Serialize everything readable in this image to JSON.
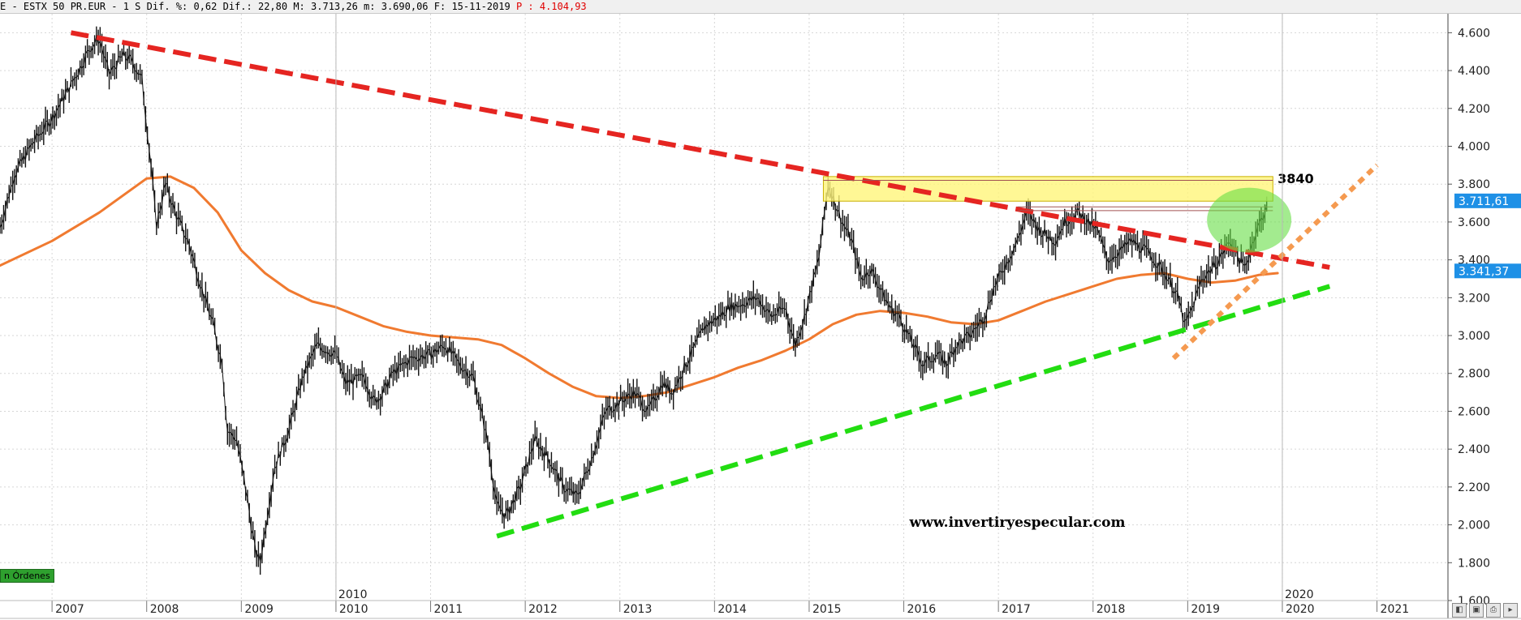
{
  "header": {
    "symbol": "E - ESTX 50 PR.EUR -",
    "period": "1 S",
    "pct_change_label": "Dif. %:",
    "pct_change": "0,62",
    "change_label": "Dif.:",
    "change": "22,80",
    "high_label": "M:",
    "high": "3.713,26",
    "low_label": "m:",
    "low": "3.690,06",
    "date_label": "F:",
    "date": "15-11-2019",
    "max_label": "P :",
    "max": "4.104,93"
  },
  "colors": {
    "price": "#111111",
    "ma": "#f07a30",
    "resistance": "#e52521",
    "support": "#22dd11",
    "uptrend": "#f59a50",
    "zone": "#fff57a",
    "circle": "#66dd44",
    "last_tag": "#1e90e6"
  },
  "chart_data": {
    "type": "line",
    "title": "",
    "xlabel": "",
    "ylabel": "",
    "x_range": [
      2006.45,
      2021.75
    ],
    "ylim": [
      1600,
      4700
    ],
    "y_ticks": [
      1600,
      1800,
      2000,
      2200,
      2400,
      2600,
      2800,
      3000,
      3200,
      3400,
      3600,
      3800,
      4000,
      4200,
      4400,
      4600
    ],
    "y_tick_labels": [
      "1.600",
      "1.800",
      "2.000",
      "2.200",
      "2.400",
      "2.600",
      "2.800",
      "3.000",
      "3.200",
      "3.400",
      "3.600",
      "3.800",
      "4.000",
      "4.200",
      "4.400",
      "4.600"
    ],
    "x_ticks": [
      2007,
      2008,
      2009,
      2010,
      2011,
      2012,
      2013,
      2014,
      2015,
      2016,
      2017,
      2018,
      2019,
      2020,
      2021
    ],
    "x_tick_labels": [
      "2007",
      "2008",
      "2009",
      "2010",
      "2011",
      "2012",
      "2013",
      "2014",
      "2015",
      "2016",
      "2017",
      "2018",
      "2019",
      "2020",
      "2021"
    ],
    "x_year_markers": [
      {
        "x": 2010,
        "label": "2010"
      },
      {
        "x": 2020,
        "label": "2020"
      }
    ],
    "grid": true,
    "series": [
      {
        "kind": "price",
        "x": [
          2006.45,
          2006.6,
          2006.8,
          2007.0,
          2007.15,
          2007.3,
          2007.4,
          2007.5,
          2007.6,
          2007.75,
          2007.85,
          2007.95,
          2008.05,
          2008.1,
          2008.2,
          2008.3,
          2008.45,
          2008.55,
          2008.7,
          2008.8,
          2008.85,
          2008.95,
          2009.05,
          2009.15,
          2009.2,
          2009.35,
          2009.5,
          2009.65,
          2009.8,
          2010.0,
          2010.1,
          2010.3,
          2010.4,
          2010.5,
          2010.6,
          2010.8,
          2011.0,
          2011.15,
          2011.3,
          2011.45,
          2011.6,
          2011.7,
          2011.8,
          2011.95,
          2012.1,
          2012.25,
          2012.4,
          2012.55,
          2012.7,
          2012.85,
          2013.0,
          2013.15,
          2013.3,
          2013.45,
          2013.55,
          2013.7,
          2013.9,
          2014.05,
          2014.15,
          2014.3,
          2014.45,
          2014.6,
          2014.75,
          2014.85,
          2014.95,
          2015.1,
          2015.2,
          2015.35,
          2015.45,
          2015.55,
          2015.65,
          2015.75,
          2015.85,
          2015.95,
          2016.1,
          2016.2,
          2016.35,
          2016.45,
          2016.55,
          2016.7,
          2016.85,
          2016.95,
          2017.1,
          2017.2,
          2017.3,
          2017.45,
          2017.6,
          2017.7,
          2017.85,
          2017.95,
          2018.05,
          2018.15,
          2018.3,
          2018.4,
          2018.55,
          2018.65,
          2018.8,
          2018.9,
          2018.97,
          2019.05,
          2019.15,
          2019.3,
          2019.45,
          2019.6,
          2019.7,
          2019.85
        ],
        "values": [
          3570,
          3850,
          4020,
          4150,
          4280,
          4420,
          4520,
          4570,
          4380,
          4480,
          4450,
          4350,
          3880,
          3580,
          3800,
          3650,
          3480,
          3300,
          3060,
          2850,
          2500,
          2450,
          2180,
          1850,
          1810,
          2300,
          2500,
          2780,
          2950,
          2900,
          2750,
          2780,
          2650,
          2700,
          2800,
          2880,
          2900,
          2950,
          2850,
          2780,
          2450,
          2100,
          2050,
          2200,
          2450,
          2350,
          2200,
          2150,
          2350,
          2600,
          2650,
          2700,
          2600,
          2750,
          2700,
          2850,
          3050,
          3100,
          3150,
          3170,
          3200,
          3100,
          3150,
          2950,
          3100,
          3400,
          3800,
          3600,
          3500,
          3300,
          3350,
          3250,
          3150,
          3100,
          2950,
          2850,
          2900,
          2850,
          2950,
          3000,
          3100,
          3250,
          3400,
          3500,
          3650,
          3550,
          3500,
          3600,
          3650,
          3600,
          3550,
          3400,
          3450,
          3500,
          3450,
          3400,
          3300,
          3200,
          3050,
          3150,
          3300,
          3380,
          3500,
          3350,
          3520,
          3700
        ]
      },
      {
        "kind": "moving-average",
        "x": [
          2006.45,
          2007.0,
          2007.5,
          2008.0,
          2008.25,
          2008.5,
          2008.75,
          2009.0,
          2009.25,
          2009.5,
          2009.75,
          2010.0,
          2010.25,
          2010.5,
          2010.75,
          2011.0,
          2011.25,
          2011.5,
          2011.75,
          2012.0,
          2012.25,
          2012.5,
          2012.75,
          2013.0,
          2013.25,
          2013.5,
          2013.75,
          2014.0,
          2014.25,
          2014.5,
          2014.75,
          2015.0,
          2015.25,
          2015.5,
          2015.75,
          2016.0,
          2016.25,
          2016.5,
          2016.75,
          2017.0,
          2017.25,
          2017.5,
          2017.75,
          2018.0,
          2018.25,
          2018.5,
          2018.75,
          2019.0,
          2019.25,
          2019.5,
          2019.75,
          2019.95
        ],
        "values": [
          3370,
          3500,
          3650,
          3830,
          3840,
          3780,
          3650,
          3450,
          3330,
          3240,
          3180,
          3150,
          3100,
          3050,
          3020,
          3000,
          2990,
          2980,
          2950,
          2880,
          2800,
          2730,
          2680,
          2670,
          2680,
          2700,
          2740,
          2780,
          2830,
          2870,
          2920,
          2980,
          3060,
          3110,
          3130,
          3120,
          3100,
          3070,
          3060,
          3080,
          3130,
          3180,
          3220,
          3260,
          3300,
          3320,
          3330,
          3300,
          3280,
          3290,
          3320,
          3330
        ]
      }
    ],
    "annotations": [
      {
        "kind": "resistance-trendline",
        "x": [
          2007.2,
          2020.5
        ],
        "y": [
          4600,
          3360
        ]
      },
      {
        "kind": "support-trendline",
        "x": [
          2011.7,
          2020.5
        ],
        "y": [
          1940,
          3260
        ]
      },
      {
        "kind": "uptrend-line",
        "x": [
          2018.85,
          2021.0
        ],
        "y": [
          2880,
          3900
        ]
      },
      {
        "kind": "resistance-zone",
        "x": [
          2015.15,
          2019.9
        ],
        "y": [
          3710,
          3840
        ]
      },
      {
        "kind": "level-line",
        "x": [
          2015.15,
          2019.9
        ],
        "y": 3820
      },
      {
        "kind": "level-line",
        "x": [
          2017.2,
          2019.9
        ],
        "y": 3680
      },
      {
        "kind": "level-line",
        "x": [
          2017.2,
          2019.9
        ],
        "y": 3660
      },
      {
        "kind": "highlight-circle",
        "x": 2019.65,
        "y": 3610
      },
      {
        "kind": "text",
        "text": "3840",
        "x": 2019.95,
        "y": 3830
      },
      {
        "kind": "watermark",
        "text": "www.invertiryespecular.com",
        "x": 2017.2,
        "y": 1990
      }
    ],
    "last_values": [
      {
        "label": "3.711,61",
        "value": 3711.61
      },
      {
        "label": "3.341,37",
        "value": 3341.37
      }
    ]
  },
  "panel": {
    "ordenes_label": "n Órdenes"
  }
}
